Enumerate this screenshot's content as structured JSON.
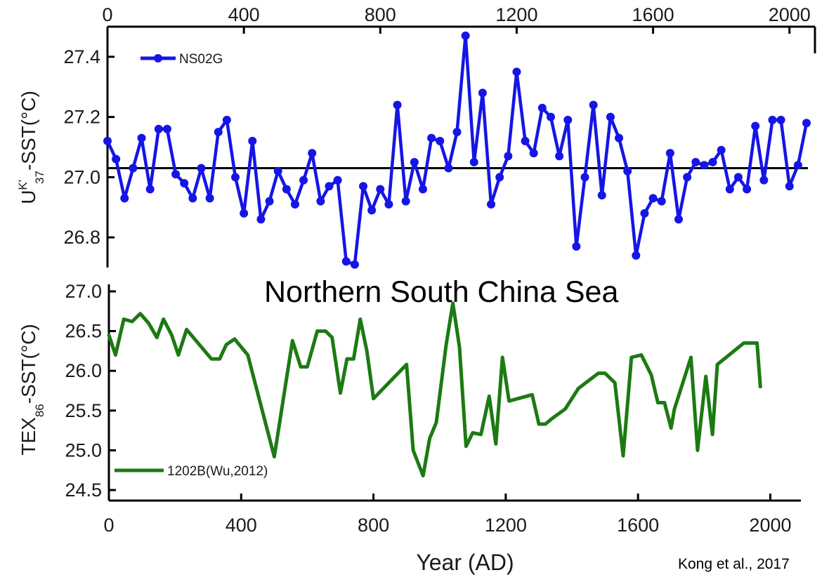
{
  "figure": {
    "title": "Northern South China Sea",
    "credit": "Kong et al., 2017",
    "xlabel": "Year (AD)"
  },
  "chart_data": [
    {
      "type": "line",
      "panel": "top",
      "ylabel_main": "U",
      "ylabel_sup": "K'",
      "ylabel_sub": "37",
      "ylabel_rest": "-SST(°C)",
      "xlim": [
        0,
        2050
      ],
      "ylim": [
        26.7,
        27.5
      ],
      "xticks": [
        0,
        400,
        800,
        1200,
        1600,
        2000
      ],
      "yticks": [
        26.8,
        27.0,
        27.2,
        27.4
      ],
      "ytick_labels": [
        "26.8",
        "27.0",
        "27.2",
        "27.4"
      ],
      "x_axis_position": "top",
      "reference_line": 27.03,
      "color": "#1515e6",
      "series": [
        {
          "name": "NS02G",
          "x": [
            0,
            25,
            50,
            75,
            100,
            125,
            150,
            175,
            200,
            225,
            250,
            275,
            300,
            325,
            350,
            375,
            400,
            425,
            450,
            475,
            500,
            525,
            550,
            575,
            600,
            625,
            650,
            675,
            700,
            725,
            750,
            775,
            800,
            825,
            850,
            875,
            900,
            925,
            950,
            975,
            1000,
            1025,
            1050,
            1075,
            1100,
            1125,
            1150,
            1175,
            1200,
            1225,
            1250,
            1275,
            1300,
            1325,
            1350,
            1375,
            1400,
            1425,
            1450,
            1475,
            1500,
            1525,
            1550,
            1575,
            1600,
            1625,
            1650,
            1675,
            1700,
            1725,
            1750,
            1775,
            1800,
            1825,
            1850,
            1875,
            1900,
            1925,
            1950,
            1975,
            2000,
            2025,
            2050
          ],
          "y": [
            27.12,
            27.06,
            26.93,
            27.03,
            27.13,
            26.96,
            27.16,
            27.16,
            27.01,
            26.98,
            26.93,
            27.03,
            26.93,
            27.15,
            27.19,
            27.0,
            26.88,
            27.12,
            26.86,
            26.92,
            27.02,
            26.96,
            26.91,
            26.99,
            27.08,
            26.92,
            26.97,
            26.99,
            26.72,
            26.71,
            26.97,
            26.89,
            26.96,
            26.91,
            27.24,
            26.92,
            27.05,
            26.96,
            27.13,
            27.12,
            27.03,
            27.15,
            27.47,
            27.05,
            27.28,
            26.91,
            27.0,
            27.07,
            27.35,
            27.12,
            27.08,
            27.23,
            27.2,
            27.07,
            27.19,
            26.77,
            27.0,
            27.24,
            26.94,
            27.2,
            27.13,
            27.02,
            26.74,
            26.88,
            26.93,
            26.92,
            27.08,
            26.86,
            27.0,
            27.05,
            27.04,
            27.05,
            27.09,
            26.96,
            27.0,
            26.96,
            27.17,
            26.99,
            27.19,
            27.19,
            26.97,
            27.04,
            27.18
          ]
        }
      ]
    },
    {
      "type": "line",
      "panel": "bottom",
      "ylabel_main": "TEX",
      "ylabel_sub": "86",
      "ylabel_rest": "-SST(°C)",
      "xlim": [
        0,
        2050
      ],
      "ylim": [
        24.5,
        27.0
      ],
      "xticks": [
        0,
        400,
        800,
        1200,
        1600,
        2000
      ],
      "yticks": [
        24.5,
        25.0,
        25.5,
        26.0,
        26.5,
        27.0
      ],
      "ytick_labels": [
        "24.5",
        "25.0",
        "25.5",
        "26.0",
        "26.5",
        "27.0"
      ],
      "x_axis_position": "bottom",
      "color": "#1c7a13",
      "series": [
        {
          "name": "1202B(Wu,2012)",
          "x": [
            0,
            20,
            45,
            70,
            95,
            120,
            145,
            165,
            190,
            210,
            235,
            310,
            335,
            355,
            380,
            420,
            500,
            555,
            580,
            600,
            630,
            655,
            675,
            700,
            720,
            740,
            760,
            780,
            800,
            900,
            920,
            950,
            970,
            990,
            1020,
            1040,
            1060,
            1080,
            1100,
            1125,
            1150,
            1170,
            1190,
            1210,
            1280,
            1300,
            1320,
            1340,
            1380,
            1420,
            1480,
            1500,
            1530,
            1555,
            1580,
            1610,
            1640,
            1660,
            1680,
            1700,
            1710,
            1760,
            1780,
            1805,
            1825,
            1840,
            1920,
            1960,
            1970
          ],
          "y": [
            26.45,
            26.2,
            26.65,
            26.62,
            26.72,
            26.6,
            26.42,
            26.65,
            26.45,
            26.2,
            26.52,
            26.15,
            26.15,
            26.33,
            26.4,
            26.2,
            24.92,
            26.38,
            26.05,
            26.05,
            26.5,
            26.5,
            26.42,
            25.72,
            26.15,
            26.15,
            26.65,
            26.25,
            25.65,
            26.08,
            25.0,
            24.68,
            25.15,
            25.35,
            26.33,
            26.85,
            26.3,
            25.05,
            25.22,
            25.2,
            25.68,
            25.08,
            26.17,
            25.62,
            25.7,
            25.33,
            25.33,
            25.4,
            25.52,
            25.78,
            25.97,
            25.97,
            25.85,
            24.93,
            26.17,
            26.2,
            25.95,
            25.6,
            25.6,
            25.28,
            25.52,
            26.17,
            25.0,
            25.93,
            25.2,
            26.08,
            26.35,
            26.35,
            25.8
          ]
        }
      ]
    }
  ]
}
